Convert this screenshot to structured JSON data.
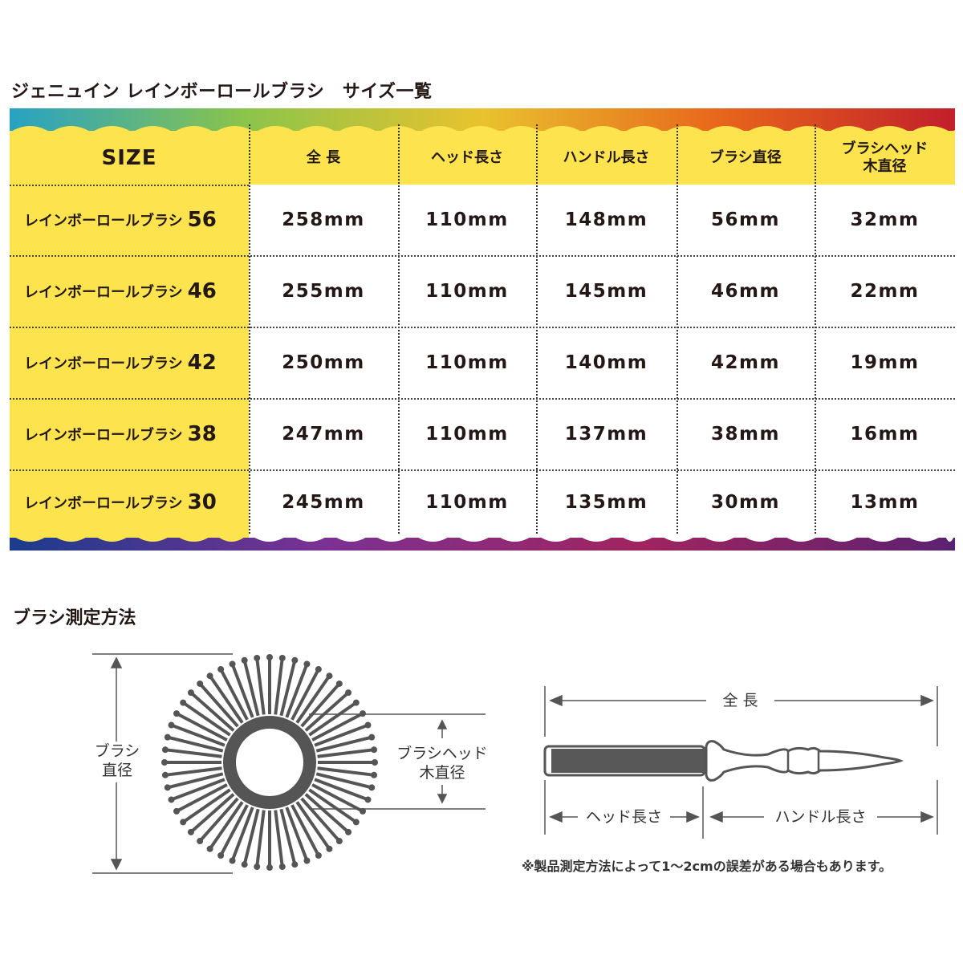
{
  "title": "ジェニュイン レインボーロールブラシ　サイズ一覧",
  "table": {
    "headers": [
      "SIZE",
      "全 長",
      "ヘッド長さ",
      "ハンドル長さ",
      "ブラシ直径",
      "ブラシヘッド\n木直径"
    ],
    "header_lines": {
      "last_line1": "ブラシヘッド",
      "last_line2": "木直径"
    },
    "rows": [
      {
        "name": "レインボーロールブラシ",
        "size": "56",
        "values": [
          "258mm",
          "110mm",
          "148mm",
          "56mm",
          "32mm"
        ]
      },
      {
        "name": "レインボーロールブラシ",
        "size": "46",
        "values": [
          "255mm",
          "110mm",
          "145mm",
          "46mm",
          "22mm"
        ]
      },
      {
        "name": "レインボーロールブラシ",
        "size": "42",
        "values": [
          "250mm",
          "110mm",
          "140mm",
          "42mm",
          "19mm"
        ]
      },
      {
        "name": "レインボーロールブラシ",
        "size": "38",
        "values": [
          "247mm",
          "110mm",
          "137mm",
          "38mm",
          "16mm"
        ]
      },
      {
        "name": "レインボーロールブラシ",
        "size": "30",
        "values": [
          "245mm",
          "110mm",
          "135mm",
          "30mm",
          "13mm"
        ]
      }
    ],
    "colors": {
      "header_fill": "#fde34e",
      "top_gradient": [
        "#27a2c4",
        "#8cc44a",
        "#e9c22e",
        "#e8661b",
        "#c21f2b"
      ],
      "bottom_gradient": [
        "#1b3c8c",
        "#7b3194",
        "#a0245f",
        "#5b2272"
      ]
    }
  },
  "section2_title": "ブラシ測定方法",
  "diagram": {
    "brush_diameter_label": [
      "ブラシ",
      "直径"
    ],
    "head_wood_label": [
      "ブラシヘッド",
      "木直径"
    ],
    "total_length_label": "全 長",
    "head_length_label": "ヘッド長さ",
    "handle_length_label": "ハンドル長さ",
    "note": "※製品測定方法によって1～2cmの誤差がある場合もあります。",
    "line_color": "#555555"
  }
}
